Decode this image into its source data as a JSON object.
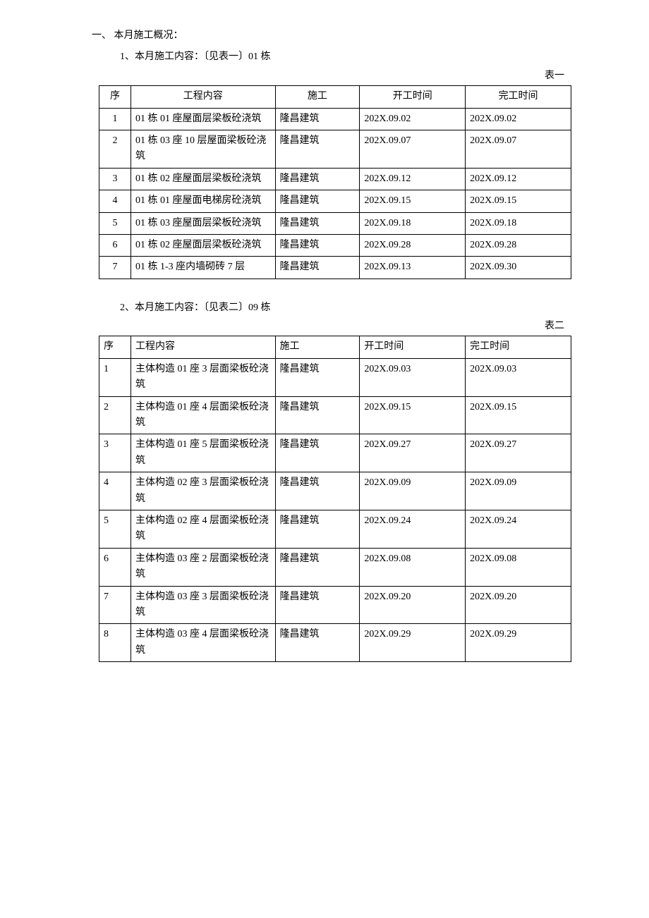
{
  "section_heading": "一、 本月施工概况：",
  "subsection1_heading": "1、本月施工内容：〔见表一〕01 栋",
  "table1_label": "表一",
  "table1": {
    "headers": {
      "seq": "序",
      "content": "工程内容",
      "contractor": "施工",
      "start": "开工时间",
      "end": "完工时间"
    },
    "rows": [
      {
        "seq": "1",
        "content": "01 栋 01 座屋面层梁板砼浇筑",
        "contractor": "隆昌建筑",
        "start": "202X.09.02",
        "end": "202X.09.02"
      },
      {
        "seq": "2",
        "content": "01 栋 03 座 10 层屋面梁板砼浇筑",
        "contractor": "隆昌建筑",
        "start": "202X.09.07",
        "end": "202X.09.07"
      },
      {
        "seq": "3",
        "content": "01 栋 02 座屋面层梁板砼浇筑",
        "contractor": "隆昌建筑",
        "start": "202X.09.12",
        "end": "202X.09.12"
      },
      {
        "seq": "4",
        "content": "01 栋 01 座屋面电梯房砼浇筑",
        "contractor": "隆昌建筑",
        "start": "202X.09.15",
        "end": "202X.09.15"
      },
      {
        "seq": "5",
        "content": "01 栋 03 座屋面层梁板砼浇筑",
        "contractor": "隆昌建筑",
        "start": "202X.09.18",
        "end": "202X.09.18"
      },
      {
        "seq": "6",
        "content": "01 栋 02 座屋面层梁板砼浇筑",
        "contractor": "隆昌建筑",
        "start": "202X.09.28",
        "end": "202X.09.28"
      },
      {
        "seq": "7",
        "content": "01 栋 1-3 座内墙砌砖 7 层",
        "contractor": "隆昌建筑",
        "start": "202X.09.13",
        "end": "202X.09.30"
      }
    ]
  },
  "subsection2_heading": "2、本月施工内容：〔见表二〕09 栋",
  "table2_label": "表二",
  "table2": {
    "headers": {
      "seq": "序",
      "content": "工程内容",
      "contractor": "施工",
      "start": "开工时间",
      "end": "完工时间"
    },
    "rows": [
      {
        "seq": "1",
        "content": "主体构造 01 座 3 层面梁板砼浇筑",
        "contractor": "隆昌建筑",
        "start": "202X.09.03",
        "end": "202X.09.03"
      },
      {
        "seq": "2",
        "content": "主体构造 01 座 4 层面梁板砼浇筑",
        "contractor": "隆昌建筑",
        "start": "202X.09.15",
        "end": "202X.09.15"
      },
      {
        "seq": "3",
        "content": "主体构造 01 座 5 层面梁板砼浇筑",
        "contractor": "隆昌建筑",
        "start": "202X.09.27",
        "end": "202X.09.27"
      },
      {
        "seq": "4",
        "content": "主体构造 02 座 3 层面梁板砼浇筑",
        "contractor": "隆昌建筑",
        "start": "202X.09.09",
        "end": "202X.09.09"
      },
      {
        "seq": "5",
        "content": "主体构造 02 座 4 层面梁板砼浇筑",
        "contractor": "隆昌建筑",
        "start": "202X.09.24",
        "end": "202X.09.24"
      },
      {
        "seq": "6",
        "content": "主体构造 03 座 2 层面梁板砼浇筑",
        "contractor": "隆昌建筑",
        "start": "202X.09.08",
        "end": "202X.09.08"
      },
      {
        "seq": "7",
        "content": "主体构造 03 座 3 层面梁板砼浇筑",
        "contractor": "隆昌建筑",
        "start": "202X.09.20",
        "end": "202X.09.20"
      },
      {
        "seq": "8",
        "content": "主体构造 03 座 4 层面梁板砼浇筑",
        "contractor": "隆昌建筑",
        "start": "202X.09.29",
        "end": "202X.09.29"
      }
    ]
  }
}
